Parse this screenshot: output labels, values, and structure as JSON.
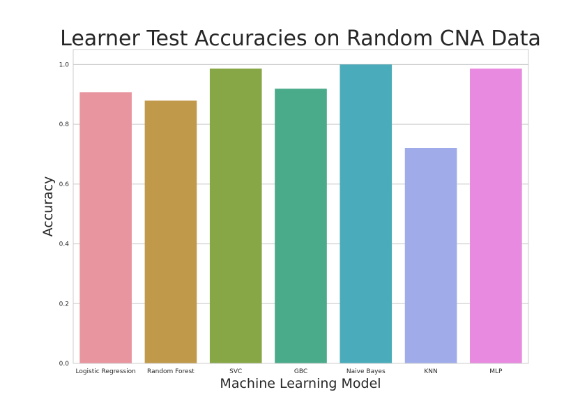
{
  "chart_data": {
    "type": "bar",
    "title": "Learner Test Accuracies on Random CNA Data",
    "xlabel": "Machine Learning Model",
    "ylabel": "Accuracy",
    "categories": [
      "Logistic Regression",
      "Random Forest",
      "SVC",
      "GBC",
      "Naive Bayes",
      "KNN",
      "MLP"
    ],
    "values": [
      0.907,
      0.879,
      0.986,
      0.919,
      1.0,
      0.721,
      0.986
    ],
    "colors": [
      "#e8959f",
      "#c0994a",
      "#87a747",
      "#4aab8b",
      "#4aacbb",
      "#a0acea",
      "#e88ae0"
    ],
    "ylim": [
      0,
      1.05
    ],
    "yticks": [
      "0.0",
      "0.2",
      "0.4",
      "0.6",
      "0.8",
      "1.0"
    ],
    "grid": true,
    "legend": false
  }
}
